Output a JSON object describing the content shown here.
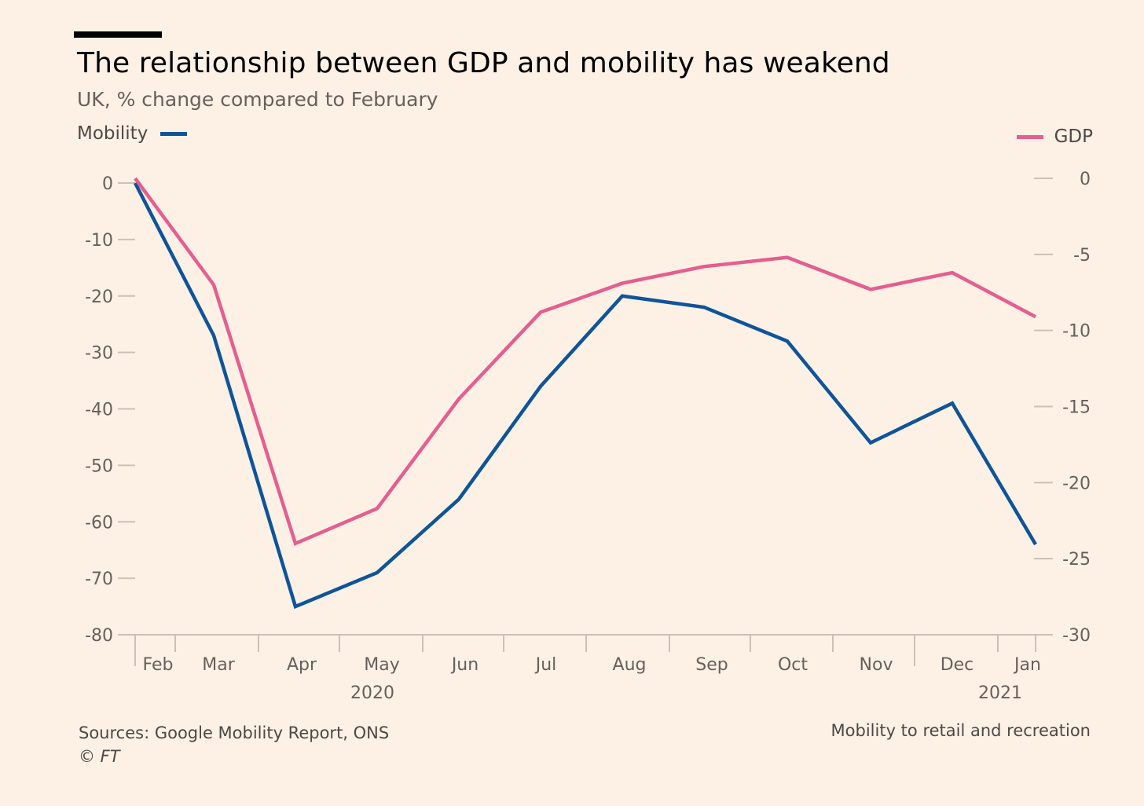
{
  "header": {
    "title": "The relationship between GDP and mobility has weakend",
    "subtitle": "UK, % change compared to February"
  },
  "legend": {
    "left_label": "Mobility",
    "right_label": "GDP"
  },
  "footer": {
    "source": "Sources: Google Mobility Report, ONS",
    "credit": "© FT",
    "note": "Mobility to retail and recreation"
  },
  "colors": {
    "background": "#fdf1e6",
    "mobility": "#0f5499",
    "gdp": "#e55e8f",
    "axis_text": "#66605c",
    "tick": "#ccc1b7"
  },
  "chart_data": {
    "type": "line",
    "categories": [
      "Feb",
      "Mar",
      "Apr",
      "May",
      "Jun",
      "Jul",
      "Aug",
      "Sep",
      "Oct",
      "Nov",
      "Dec",
      "Jan"
    ],
    "year_labels": [
      "2020",
      "2021"
    ],
    "series": [
      {
        "name": "Mobility",
        "axis": "left",
        "color": "#0f5499",
        "values": [
          0,
          -27,
          -75,
          -69,
          -56,
          -36,
          -20,
          -22,
          -28,
          -46,
          -39,
          -64
        ]
      },
      {
        "name": "GDP",
        "axis": "right",
        "color": "#e55e8f",
        "values": [
          0,
          -7,
          -24,
          -21.7,
          -14.5,
          -8.8,
          -6.9,
          -5.8,
          -5.2,
          -7.3,
          -6.2,
          -9.1
        ]
      }
    ],
    "left_axis": {
      "ylim": [
        -80,
        0
      ],
      "ticks": [
        "0",
        "-10",
        "-20",
        "-30",
        "-40",
        "-50",
        "-60",
        "-70",
        "-80"
      ]
    },
    "right_axis": {
      "ylim": [
        -30,
        0
      ],
      "ticks": [
        "0",
        "-5",
        "-10",
        "-15",
        "-20",
        "-25",
        "-30"
      ]
    },
    "grid": false
  }
}
